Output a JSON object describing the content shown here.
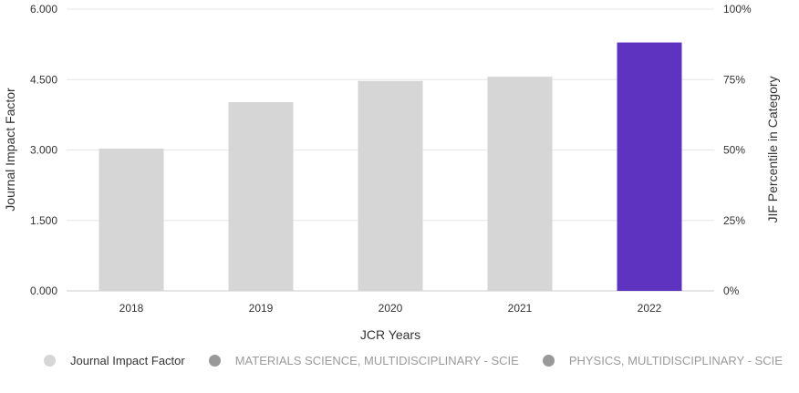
{
  "chart_data": {
    "type": "bar",
    "categories": [
      "2018",
      "2019",
      "2020",
      "2021",
      "2022"
    ],
    "series": [
      {
        "name": "Journal Impact Factor",
        "values": [
          3.03,
          4.02,
          4.47,
          4.56,
          5.29
        ]
      }
    ],
    "bar_colors": [
      "#d6d6d6",
      "#d6d6d6",
      "#d6d6d6",
      "#d6d6d6",
      "#5e33bf"
    ],
    "xlabel": "JCR Years",
    "ylabel": "Journal Impact Factor",
    "ylabel_right": "JIF Percentile in Category",
    "ylim": [
      0,
      6
    ],
    "y_ticks": [
      "0.000",
      "1.500",
      "3.000",
      "4.500",
      "6.000"
    ],
    "y_right_ticks": [
      "0%",
      "25%",
      "50%",
      "75%",
      "100%"
    ],
    "grid": true
  },
  "legend": {
    "items": [
      {
        "label": "Journal Impact Factor",
        "color": "#d6d6d6",
        "active": true
      },
      {
        "label": "MATERIALS SCIENCE, MULTIDISCIPLINARY - SCIE",
        "color": "#999999",
        "active": false
      },
      {
        "label": "PHYSICS, MULTIDISCIPLINARY - SCIE",
        "color": "#999999",
        "active": false
      }
    ]
  }
}
